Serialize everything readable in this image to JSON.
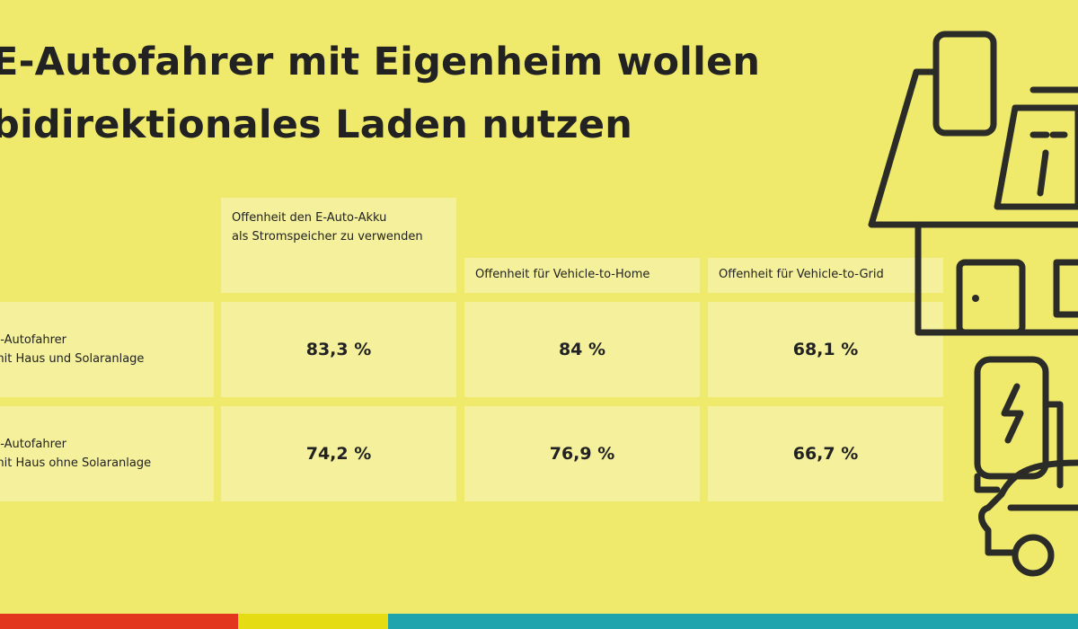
{
  "title": {
    "lines": [
      "E-Autofahrer mit Eigenheim wollen",
      "bidirektionales Laden nutzen"
    ]
  },
  "table": {
    "headers": [
      [
        "Offenheit den E-Auto-Akku",
        "als Stromspeicher zu verwenden"
      ],
      [
        "Offenheit für Vehicle-to-Home"
      ],
      [
        "Offenheit für Vehicle-to-Grid"
      ]
    ],
    "rows": [
      {
        "label": [
          "E-Autofahrer",
          "mit Haus und Solaranlage"
        ],
        "cells": [
          "83,3 %",
          "84 %",
          "68,1 %"
        ]
      },
      {
        "label": [
          "E-Autofahrer",
          "mit Haus ohne Solaranlage"
        ],
        "cells": [
          "74,2 %",
          "76,9 %",
          "66,7 %"
        ]
      }
    ]
  }
}
